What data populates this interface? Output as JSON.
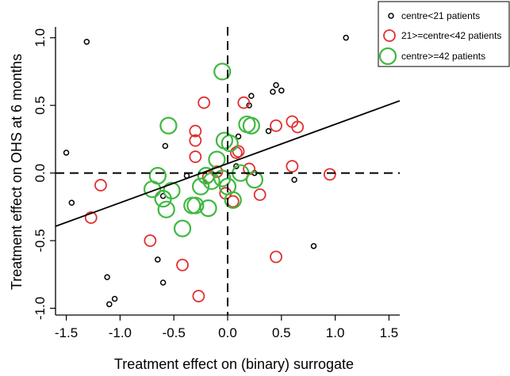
{
  "chart_data": {
    "type": "scatter",
    "title": "",
    "xlabel": "Treatment effect on (binary) surrogate",
    "ylabel": "Treatment effect on OHS at 6 months",
    "xlim": [
      -1.6,
      1.6
    ],
    "ylim": [
      -1.05,
      1.08
    ],
    "x_ticks": [
      -1.5,
      -1.0,
      -0.5,
      0.0,
      0.5,
      1.0,
      1.5
    ],
    "x_tick_labels": [
      "-1.5",
      "-1.0",
      "-0.5",
      "0.0",
      "0.5",
      "1.0",
      "1.5"
    ],
    "y_ticks": [
      -1.0,
      -0.5,
      0.0,
      0.5,
      1.0
    ],
    "y_tick_labels": [
      "-1.0",
      "-0.5",
      "0.0",
      "0.5",
      "1.0"
    ],
    "grid": false,
    "reference_lines": {
      "x": 0,
      "y": 0,
      "style": "dashed"
    },
    "regression_line": {
      "intercept": 0.07,
      "slope": 0.29
    },
    "legend_position": "top-right",
    "series": [
      {
        "name": "centre<21 patients",
        "color": "#000000",
        "marker": "small-circle",
        "points": [
          [
            -1.31,
            0.97
          ],
          [
            -1.5,
            0.15
          ],
          [
            -1.45,
            -0.22
          ],
          [
            -1.12,
            -0.77
          ],
          [
            -1.1,
            -0.97
          ],
          [
            -1.05,
            -0.93
          ],
          [
            -0.65,
            -0.64
          ],
          [
            -0.6,
            -0.81
          ],
          [
            -0.58,
            0.2
          ],
          [
            -0.6,
            -0.17
          ],
          [
            -0.38,
            -0.02
          ],
          [
            0.08,
            0.05
          ],
          [
            0.1,
            0.27
          ],
          [
            0.2,
            0.5
          ],
          [
            0.22,
            0.57
          ],
          [
            0.38,
            0.31
          ],
          [
            0.42,
            0.6
          ],
          [
            0.45,
            0.65
          ],
          [
            0.5,
            0.61
          ],
          [
            0.62,
            -0.05
          ],
          [
            0.8,
            -0.54
          ],
          [
            1.1,
            1.0
          ],
          [
            0.25,
            0.0
          ]
        ]
      },
      {
        "name": "21>=centre<42 patients",
        "color": "#e03030",
        "marker": "medium-circle",
        "points": [
          [
            -1.27,
            -0.33
          ],
          [
            -1.18,
            -0.09
          ],
          [
            -0.72,
            -0.5
          ],
          [
            -0.42,
            -0.68
          ],
          [
            -0.3,
            0.31
          ],
          [
            -0.3,
            0.24
          ],
          [
            -0.3,
            0.12
          ],
          [
            -0.22,
            0.52
          ],
          [
            -0.27,
            -0.91
          ],
          [
            -0.18,
            -0.03
          ],
          [
            -0.1,
            0.01
          ],
          [
            0.08,
            0.15
          ],
          [
            0.1,
            0.16
          ],
          [
            0.15,
            0.52
          ],
          [
            0.2,
            0.03
          ],
          [
            0.05,
            -0.21
          ],
          [
            -0.02,
            -0.15
          ],
          [
            0.3,
            -0.16
          ],
          [
            0.45,
            -0.62
          ],
          [
            0.45,
            0.35
          ],
          [
            0.6,
            0.38
          ],
          [
            0.65,
            0.34
          ],
          [
            0.6,
            0.05
          ],
          [
            0.95,
            -0.01
          ]
        ]
      },
      {
        "name": "centre>=42 patients",
        "color": "#3fb83f",
        "marker": "large-circle",
        "points": [
          [
            -0.05,
            0.75
          ],
          [
            -0.55,
            0.35
          ],
          [
            -0.65,
            -0.02
          ],
          [
            -0.7,
            -0.12
          ],
          [
            -0.6,
            -0.19
          ],
          [
            -0.57,
            -0.27
          ],
          [
            -0.52,
            -0.13
          ],
          [
            -0.42,
            -0.41
          ],
          [
            -0.33,
            -0.24
          ],
          [
            -0.3,
            -0.24
          ],
          [
            -0.25,
            -0.1
          ],
          [
            -0.18,
            -0.26
          ],
          [
            -0.15,
            -0.06
          ],
          [
            -0.1,
            0.1
          ],
          [
            -0.05,
            -0.04
          ],
          [
            -0.03,
            0.24
          ],
          [
            0.02,
            0.22
          ],
          [
            0.05,
            -0.2
          ],
          [
            0.12,
            0.0
          ],
          [
            0.18,
            0.36
          ],
          [
            0.22,
            0.35
          ],
          [
            0.25,
            -0.05
          ],
          [
            -0.2,
            -0.02
          ],
          [
            0.0,
            -0.1
          ]
        ]
      }
    ]
  }
}
